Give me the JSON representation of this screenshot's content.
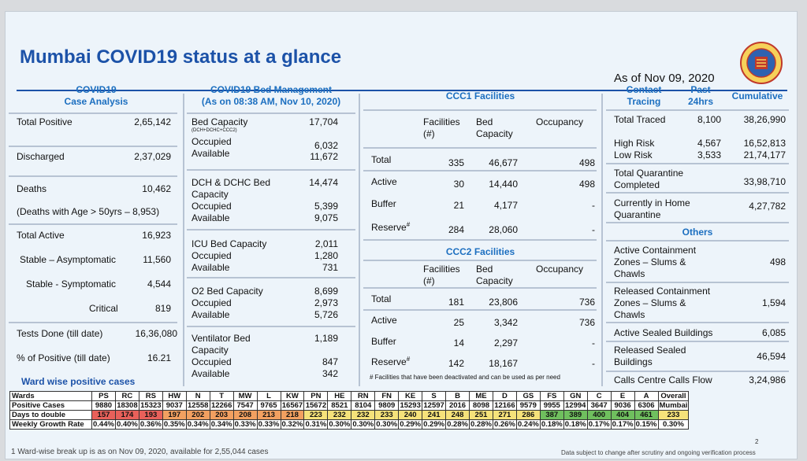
{
  "header": {
    "title": "Mumbai COVID19 status at a glance",
    "as_of": "As of Nov 09, 2020"
  },
  "case": {
    "heading": "COVID19\nCase Analysis",
    "rows": [
      {
        "label": "Total Positive",
        "value": "2,65,142"
      },
      {
        "label": "Discharged",
        "value": "2,37,029"
      },
      {
        "label": "Deaths",
        "value": "10,462"
      },
      {
        "label": "(Deaths with Age > 50yrs – 8,953)",
        "value": ""
      },
      {
        "label": "Total Active",
        "value": "16,923"
      },
      {
        "label": "Stable – Asymptomatic",
        "value": "11,560"
      },
      {
        "label": "Stable - Symptomatic",
        "value": "4,544"
      },
      {
        "label": "Critical",
        "value": "819"
      },
      {
        "label": "Tests Done (till date)",
        "value": "16,36,080"
      },
      {
        "label": "% of Positive (till date)",
        "value": "16.21"
      }
    ]
  },
  "bed": {
    "heading": "COVID19 Bed Management\n(As on 08:38 AM, Nov 10, 2020)",
    "bed_capacity": "Bed Capacity",
    "bed_capacity_sub": "(DCH+DCHC+CCC2)",
    "bed_capacity_val": "17,704",
    "occupied": "Occupied",
    "available": "Available",
    "b1_occ": "6,032",
    "b1_av": "11,672",
    "dch": "DCH & DCHC Bed\nCapacity",
    "dch_val": "14,474",
    "dch_occ": "5,399",
    "dch_av": "9,075",
    "icu": "ICU Bed Capacity",
    "icu_val": "2,011",
    "icu_occ": "1,280",
    "icu_av": "731",
    "o2": "O2 Bed Capacity",
    "o2_val": "8,699",
    "o2_occ": "2,973",
    "o2_av": "5,726",
    "vent": "Ventilator Bed\nCapacity",
    "vent_val": "1,189",
    "vent_occ": "847",
    "vent_av": "342"
  },
  "ccc1": {
    "heading": "CCC1 Facilities",
    "col1": "Facilities\n(#)",
    "col2": "Bed\nCapacity",
    "col3": "Occupancy",
    "rows": [
      {
        "label": "Total",
        "fac": "335",
        "bed": "46,677",
        "occ": "498"
      },
      {
        "label": "Active",
        "fac": "30",
        "bed": "14,440",
        "occ": "498"
      },
      {
        "label": "Buffer",
        "fac": "21",
        "bed": "4,177",
        "occ": "-"
      },
      {
        "label": "Reserve",
        "fac": "284",
        "bed": "28,060",
        "occ": "-"
      }
    ]
  },
  "ccc2": {
    "heading": "CCC2 Facilities",
    "col1": "Facilities\n(#)",
    "col2": "Bed\nCapacity",
    "col3": "Occupancy",
    "rows": [
      {
        "label": "Total",
        "fac": "181",
        "bed": "23,806",
        "occ": "736"
      },
      {
        "label": "Active",
        "fac": "25",
        "bed": "3,342",
        "occ": "736"
      },
      {
        "label": "Buffer",
        "fac": "14",
        "bed": "2,297",
        "occ": "-"
      },
      {
        "label": "Reserve",
        "fac": "142",
        "bed": "18,167",
        "occ": "-"
      }
    ],
    "note": "# Facilities that have been deactivated and can be used as per need"
  },
  "contact": {
    "h1": "Contact\nTracing",
    "h2": "Past\n24hrs",
    "h3": "Cumulative",
    "rows": [
      {
        "label": "Total Traced",
        "past": "8,100",
        "cum": "38,26,990"
      },
      {
        "label": "High Risk",
        "past": "4,567",
        "cum": "16,52,813"
      },
      {
        "label": "Low Risk",
        "past": "3,533",
        "cum": "21,74,177"
      },
      {
        "label": "Total Quarantine\nCompleted",
        "past": "",
        "cum": "33,98,710"
      },
      {
        "label": "Currently in Home\nQuarantine",
        "past": "",
        "cum": "4,27,782"
      }
    ]
  },
  "others": {
    "heading": "Others",
    "rows": [
      {
        "label": "Active Containment\nZones – Slums &\nChawls",
        "value": "498"
      },
      {
        "label": "Released Containment\nZones – Slums &\nChawls",
        "value": "1,594"
      },
      {
        "label": "Active Sealed Buildings",
        "value": "6,085"
      },
      {
        "label": "Released Sealed\nBuildings",
        "value": "46,594"
      },
      {
        "label": "Calls Centre Calls Flow",
        "value": "3,24,986"
      }
    ]
  },
  "ward": {
    "title": "Ward wise positive cases",
    "row_labels": [
      "Wards",
      "Positive Cases",
      "Days to double",
      "Weekly Growth Rate"
    ],
    "wards": [
      "PS",
      "RC",
      "RS",
      "HW",
      "N",
      "T",
      "MW",
      "L",
      "KW",
      "PN",
      "HE",
      "RN",
      "FN",
      "KE",
      "S",
      "B",
      "ME",
      "D",
      "GS",
      "FS",
      "GN",
      "C",
      "E",
      "A"
    ],
    "positive": [
      "9880",
      "18308",
      "15323",
      "9037",
      "12558",
      "12266",
      "7547",
      "9765",
      "16567",
      "15672",
      "8521",
      "8104",
      "9809",
      "15293",
      "12597",
      "2016",
      "8098",
      "12166",
      "9579",
      "9955",
      "12994",
      "3647",
      "9036",
      "6306"
    ],
    "days": [
      "157",
      "174",
      "193",
      "197",
      "202",
      "203",
      "208",
      "213",
      "218",
      "223",
      "232",
      "232",
      "233",
      "240",
      "241",
      "248",
      "251",
      "271",
      "286",
      "387",
      "389",
      "400",
      "404",
      "461"
    ],
    "growth": [
      "0.44%",
      "0.40%",
      "0.36%",
      "0.35%",
      "0.34%",
      "0.34%",
      "0.33%",
      "0.33%",
      "0.32%",
      "0.31%",
      "0.30%",
      "0.30%",
      "0.30%",
      "0.29%",
      "0.29%",
      "0.28%",
      "0.28%",
      "0.26%",
      "0.24%",
      "0.18%",
      "0.18%",
      "0.17%",
      "0.17%",
      "0.15%"
    ],
    "overall_label": "Overall",
    "overall_sub": "Mumbai",
    "overall_days": "233",
    "overall_growth": "0.30%",
    "colors": {
      "red": "#e8605a",
      "orange": "#f2a060",
      "yellow": "#f5e27a",
      "lgreen": "#b9d67a",
      "green": "#6fbf5e"
    }
  },
  "footer": {
    "note1": "1 Ward-wise break up is as on Nov 09, 2020, available for 2,55,044 cases",
    "note2": "Data subject to change after scrutiny and ongoing verification process",
    "page": "2",
    "sup1": "1",
    "reserve_sup": "#"
  }
}
